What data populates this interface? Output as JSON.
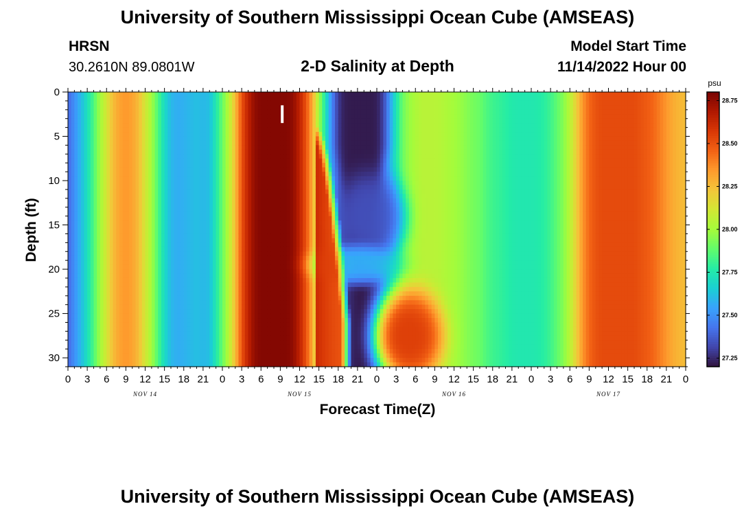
{
  "page": {
    "title": "University of Southern Mississippi Ocean Cube (AMSEAS)",
    "title_repeat": "University of Southern Mississippi Ocean Cube (AMSEAS)",
    "station": "HRSN",
    "coords": "30.2610N  89.0801W",
    "subtitle": "2-D Salinity at Depth",
    "model_start_label": "Model Start Time",
    "model_start_value": "11/14/2022 Hour 00"
  },
  "chart_data": {
    "type": "heatmap",
    "title": "2-D Salinity at Depth",
    "xlabel": "Forecast Time(Z)",
    "ylabel": "Depth (ft)",
    "x_tick_labels": [
      "0",
      "3",
      "6",
      "9",
      "12",
      "15",
      "18",
      "21",
      "0",
      "3",
      "6",
      "9",
      "12",
      "15",
      "18",
      "21",
      "0",
      "3",
      "6",
      "9",
      "12",
      "15",
      "18",
      "21",
      "0",
      "3",
      "6",
      "9",
      "12",
      "15",
      "18",
      "21",
      "0"
    ],
    "x_range_hours": [
      0,
      96
    ],
    "day_labels": [
      {
        "label": "NOV 14",
        "hour": 12
      },
      {
        "label": "NOV 15",
        "hour": 36
      },
      {
        "label": "NOV 16",
        "hour": 60
      },
      {
        "label": "NOV 17",
        "hour": 84
      }
    ],
    "y_tick_labels": [
      "0",
      "5",
      "10",
      "15",
      "20",
      "25",
      "30"
    ],
    "y_ticks": [
      0,
      5,
      10,
      15,
      20,
      25,
      30
    ],
    "y_range_ft": [
      0,
      31
    ],
    "y_inverted": true,
    "colorbar": {
      "unit": "psu",
      "range": [
        27.2,
        28.8
      ],
      "ticks": [
        27.25,
        27.5,
        27.75,
        28.0,
        28.25,
        28.5,
        28.75
      ],
      "tick_labels": [
        "27.25",
        "27.50",
        "27.75",
        "28.00",
        "28.25",
        "28.50",
        "28.75"
      ],
      "colormap": [
        "#30123b",
        "#4145ab",
        "#4675ed",
        "#39a2fc",
        "#1bcfd4",
        "#24eca6",
        "#61fc6c",
        "#a4fc3b",
        "#d1e834",
        "#f3c63a",
        "#fe9b2d",
        "#f36315",
        "#d93806",
        "#b11901",
        "#7a0402"
      ]
    },
    "surface_salinity_by_hour": [
      [
        0,
        27.4
      ],
      [
        1,
        27.5
      ],
      [
        2,
        27.6
      ],
      [
        3,
        27.72
      ],
      [
        4,
        27.85
      ],
      [
        5,
        28.0
      ],
      [
        6,
        28.12
      ],
      [
        7,
        28.25
      ],
      [
        8,
        28.32
      ],
      [
        9,
        28.35
      ],
      [
        10,
        28.32
      ],
      [
        11,
        28.25
      ],
      [
        12,
        28.12
      ],
      [
        13,
        28.0
      ],
      [
        14,
        27.85
      ],
      [
        15,
        27.7
      ],
      [
        16,
        27.6
      ],
      [
        17,
        27.57
      ],
      [
        18,
        27.58
      ],
      [
        19,
        27.6
      ],
      [
        20,
        27.62
      ],
      [
        21,
        27.6
      ],
      [
        22,
        27.62
      ],
      [
        23,
        27.75
      ],
      [
        24,
        27.9
      ],
      [
        25,
        28.05
      ],
      [
        26,
        28.25
      ],
      [
        27,
        28.5
      ],
      [
        28,
        28.65
      ],
      [
        29,
        28.75
      ],
      [
        30,
        28.78
      ],
      [
        31,
        28.78
      ],
      [
        32,
        28.78
      ],
      [
        33,
        28.78
      ],
      [
        34,
        28.78
      ],
      [
        35,
        28.75
      ],
      [
        36,
        28.65
      ],
      [
        37,
        28.5
      ],
      [
        38,
        28.3
      ],
      [
        39,
        28.0
      ],
      [
        40,
        27.75
      ],
      [
        41,
        27.55
      ],
      [
        42,
        27.4
      ],
      [
        43,
        27.3
      ],
      [
        44,
        27.25
      ],
      [
        45,
        27.22
      ],
      [
        46,
        27.22
      ],
      [
        47,
        27.25
      ],
      [
        48,
        27.32
      ],
      [
        49,
        27.45
      ],
      [
        50,
        27.6
      ],
      [
        51,
        27.75
      ],
      [
        52,
        27.9
      ],
      [
        53,
        27.98
      ],
      [
        54,
        28.02
      ],
      [
        55,
        28.05
      ],
      [
        56,
        28.05
      ],
      [
        57,
        28.05
      ],
      [
        58,
        28.04
      ],
      [
        59,
        28.02
      ],
      [
        60,
        28.0
      ],
      [
        61,
        27.98
      ],
      [
        62,
        27.95
      ],
      [
        63,
        27.92
      ],
      [
        64,
        27.9
      ],
      [
        65,
        27.85
      ],
      [
        66,
        27.82
      ],
      [
        67,
        27.8
      ],
      [
        68,
        27.78
      ],
      [
        69,
        27.76
      ],
      [
        70,
        27.75
      ],
      [
        71,
        27.75
      ],
      [
        72,
        27.75
      ],
      [
        73,
        27.76
      ],
      [
        74,
        27.78
      ],
      [
        75,
        27.82
      ],
      [
        76,
        27.88
      ],
      [
        77,
        27.95
      ],
      [
        78,
        28.05
      ],
      [
        79,
        28.2
      ],
      [
        80,
        28.35
      ],
      [
        81,
        28.45
      ],
      [
        82,
        28.5
      ],
      [
        83,
        28.52
      ],
      [
        84,
        28.52
      ],
      [
        85,
        28.52
      ],
      [
        86,
        28.52
      ],
      [
        87,
        28.52
      ],
      [
        88,
        28.52
      ],
      [
        89,
        28.5
      ],
      [
        90,
        28.48
      ],
      [
        91,
        28.45
      ],
      [
        92,
        28.4
      ],
      [
        93,
        28.35
      ],
      [
        94,
        28.3
      ],
      [
        95,
        28.27
      ],
      [
        96,
        28.25
      ]
    ],
    "features": [
      {
        "description": "low-salinity core",
        "center_hour": 45.5,
        "center_depth_ft": 4,
        "hour_halfwidth": 4,
        "depth_halfwidth_ft": 7,
        "top_depth_ft": -2,
        "bottom_depth_ft": 14,
        "value": 27.22
      },
      {
        "description": "low-salinity lobe",
        "center_hour": 47,
        "center_depth_ft": 14,
        "hour_halfwidth": 5.5,
        "depth_halfwidth_ft": 5,
        "value": 27.35
      },
      {
        "description": "mid-depth blue band",
        "center_hour": 45,
        "center_depth_ft": 19.5,
        "hour_halfwidth": 7,
        "depth_halfwidth_ft": 2.2,
        "value": 27.7
      },
      {
        "description": "high-salinity bottom pocket",
        "center_hour": 53,
        "center_depth_ft": 27.5,
        "hour_halfwidth": 5.5,
        "depth_halfwidth_ft": 5.5,
        "value": 28.55
      },
      {
        "description": "sloped high-salinity front",
        "start_hour": 38.5,
        "end_hour": 44,
        "top_depth_ft": 4,
        "bottom_depth_ft": 26,
        "value": 28.7
      }
    ]
  }
}
